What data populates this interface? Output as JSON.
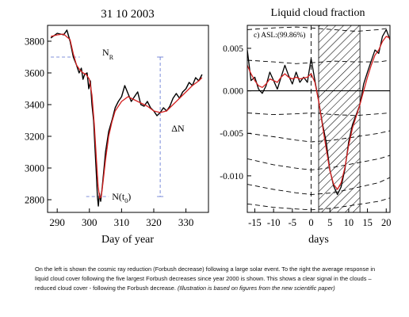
{
  "chart_data": [
    {
      "type": "line",
      "title": "31 10 2003",
      "xlabel": "Day of year",
      "ylabel": "",
      "xlim": [
        287,
        337
      ],
      "ylim": [
        2720,
        3900
      ],
      "xticks": [
        290,
        300,
        310,
        320,
        330
      ],
      "yticks": [
        2800,
        3000,
        3200,
        3400,
        3600,
        3800
      ],
      "grid": false,
      "series": [
        {
          "color": "#000000",
          "x": [
            288,
            290,
            292,
            293,
            294,
            295,
            296,
            296.8,
            297.5,
            298,
            298.5,
            299.3,
            299.8,
            300.3,
            300.8,
            301.3,
            301.8,
            302.2,
            302.5,
            302.8,
            303.1,
            303.5,
            304,
            304.5,
            305,
            306,
            307,
            308,
            309,
            310,
            311,
            312,
            313,
            314,
            315,
            316,
            317,
            318,
            319,
            320,
            321,
            322,
            323,
            324,
            325,
            326,
            327,
            328,
            329,
            330,
            331,
            332,
            333,
            334,
            335
          ],
          "y": [
            3820,
            3850,
            3840,
            3870,
            3800,
            3700,
            3650,
            3600,
            3630,
            3560,
            3590,
            3600,
            3500,
            3550,
            3400,
            3300,
            3100,
            2950,
            2820,
            2760,
            2840,
            2790,
            2880,
            2990,
            3100,
            3230,
            3300,
            3380,
            3420,
            3450,
            3520,
            3470,
            3420,
            3450,
            3480,
            3400,
            3390,
            3420,
            3380,
            3360,
            3330,
            3350,
            3380,
            3360,
            3390,
            3440,
            3470,
            3440,
            3480,
            3500,
            3540,
            3520,
            3570,
            3550,
            3590
          ]
        },
        {
          "color": "#d42020",
          "x": [
            288,
            290,
            292,
            294,
            295,
            296,
            297,
            298,
            299,
            300,
            300.8,
            301.5,
            302.2,
            302.7,
            303.2,
            303.7,
            304.3,
            305,
            306,
            307,
            308,
            310,
            312,
            314,
            316,
            318,
            320,
            322,
            324,
            326,
            328,
            330,
            332,
            334,
            335
          ],
          "y": [
            3830,
            3840,
            3845,
            3810,
            3720,
            3650,
            3620,
            3600,
            3590,
            3560,
            3460,
            3280,
            3050,
            2890,
            2810,
            2820,
            2920,
            3050,
            3200,
            3290,
            3360,
            3420,
            3450,
            3430,
            3410,
            3390,
            3360,
            3350,
            3360,
            3400,
            3440,
            3480,
            3520,
            3550,
            3570
          ]
        }
      ],
      "annotations": [
        {
          "label": "N",
          "sub": "R"
        },
        {
          "label": "ΔN"
        },
        {
          "label": "N(t",
          "sub": "0",
          "suffix": ")"
        }
      ],
      "reference_levels": {
        "N_R": 3700,
        "N_t0": 2820
      }
    },
    {
      "type": "line",
      "title": "Liquid cloud fraction",
      "xlabel": "days",
      "ylabel": "",
      "annotation": "c) ASL:(99.86%)",
      "xlim": [
        -17,
        21
      ],
      "ylim": [
        -0.0143,
        0.0077
      ],
      "xticks": [
        -15,
        -10,
        -5,
        0,
        5,
        10,
        15,
        20
      ],
      "yticks": [
        0.005,
        0.0,
        -0.005,
        -0.01
      ],
      "yticklabels": [
        "0.005",
        "0.000",
        "-0.005",
        "-0.010"
      ],
      "grid": false,
      "hatched_region": [
        2,
        13
      ],
      "reference_line_x": 0,
      "series": [
        {
          "color": "#000000",
          "x": [
            -17,
            -16,
            -15,
            -14,
            -13,
            -12,
            -11,
            -10,
            -9,
            -8,
            -7,
            -6,
            -5,
            -4,
            -3,
            -2,
            -1,
            0,
            1,
            2,
            3,
            4,
            5,
            6,
            7,
            8,
            9,
            10,
            11,
            12,
            13,
            14,
            15,
            16,
            17,
            18,
            19,
            20,
            21
          ],
          "y": [
            0.0048,
            0.0012,
            0.0016,
            0.0002,
            -0.0003,
            0.0006,
            0.0022,
            0.0012,
            0.0002,
            0.0016,
            0.003,
            0.0018,
            0.0008,
            0.0022,
            0.001,
            0.0016,
            0.001,
            0.0038,
            0.0012,
            -0.0012,
            -0.0038,
            -0.006,
            -0.0093,
            -0.0112,
            -0.0122,
            -0.0113,
            -0.0092,
            -0.006,
            -0.004,
            -0.0028,
            -0.0016,
            0.0008,
            0.0022,
            0.0035,
            0.0048,
            0.0044,
            0.0064,
            0.0072,
            0.006
          ]
        },
        {
          "color": "#d42020",
          "x": [
            -17,
            -16,
            -15,
            -14,
            -13,
            -12,
            -11,
            -10,
            -9,
            -8,
            -7,
            -6,
            -5,
            -4,
            -3,
            -2,
            -1,
            0,
            1,
            2,
            3,
            4,
            5,
            6,
            7,
            8,
            9,
            10,
            11,
            12,
            13,
            14,
            15,
            16,
            17,
            18,
            19,
            20,
            21
          ],
          "y": [
            0.003,
            0.002,
            0.0012,
            0.0006,
            0.0004,
            0.0008,
            0.0014,
            0.0012,
            0.001,
            0.0016,
            0.002,
            0.0016,
            0.0014,
            0.0016,
            0.0014,
            0.0015,
            0.0016,
            0.002,
            0.001,
            -0.0012,
            -0.004,
            -0.0068,
            -0.0094,
            -0.011,
            -0.0116,
            -0.0108,
            -0.009,
            -0.0064,
            -0.0044,
            -0.003,
            -0.0016,
            0.0,
            0.0016,
            0.003,
            0.0042,
            0.0048,
            0.0058,
            0.0064,
            0.0062
          ]
        }
      ],
      "dashed_bands": [
        {
          "x": [
            -17,
            -10,
            -4,
            0,
            6,
            12,
            18,
            21
          ],
          "y": [
            0.0072,
            0.0074,
            0.0075,
            0.0074,
            0.0072,
            0.007,
            0.0072,
            0.0074
          ]
        },
        {
          "x": [
            -17,
            -10,
            -4,
            0,
            6,
            12,
            18,
            21
          ],
          "y": [
            0.0036,
            0.0034,
            0.0032,
            0.0033,
            0.0035,
            0.0034,
            0.0034,
            0.0036
          ]
        },
        {
          "x": [
            -17,
            -10,
            -4,
            0,
            6,
            12,
            18,
            21
          ],
          "y": [
            -0.0026,
            -0.0028,
            -0.0027,
            -0.0026,
            -0.0028,
            -0.0029,
            -0.0027,
            -0.0026
          ]
        },
        {
          "x": [
            -17,
            -10,
            -4,
            0,
            6,
            12,
            18,
            21
          ],
          "y": [
            -0.005,
            -0.0054,
            -0.0058,
            -0.006,
            -0.0058,
            -0.0054,
            -0.005,
            -0.0047
          ]
        },
        {
          "x": [
            -17,
            -10,
            -4,
            0,
            6,
            12,
            18,
            21
          ],
          "y": [
            -0.008,
            -0.0087,
            -0.0091,
            -0.0093,
            -0.009,
            -0.0085,
            -0.008,
            -0.0076
          ]
        },
        {
          "x": [
            -17,
            -10,
            -4,
            0,
            6,
            12,
            18,
            21
          ],
          "y": [
            -0.011,
            -0.0116,
            -0.012,
            -0.0122,
            -0.012,
            -0.0114,
            -0.0108,
            -0.0102
          ]
        },
        {
          "x": [
            -17,
            -10,
            -4,
            0,
            6,
            12,
            18,
            21
          ],
          "y": [
            -0.0133,
            -0.0137,
            -0.0139,
            -0.014,
            -0.0138,
            -0.0134,
            -0.013,
            -0.0126
          ]
        }
      ]
    }
  ],
  "caption": {
    "text": "On the left is shown the cosmic ray reduction (Forbush decrease) following a large solar event. To the right the average response in liquid cloud cover following the five largest Forbush decreases since year 2000 is shown. This shows a clear signal in the clouds – reduced cloud cover - following the Forbush decrease. ",
    "italic": "(Illustration is based on figures from the new scientific paper)"
  }
}
